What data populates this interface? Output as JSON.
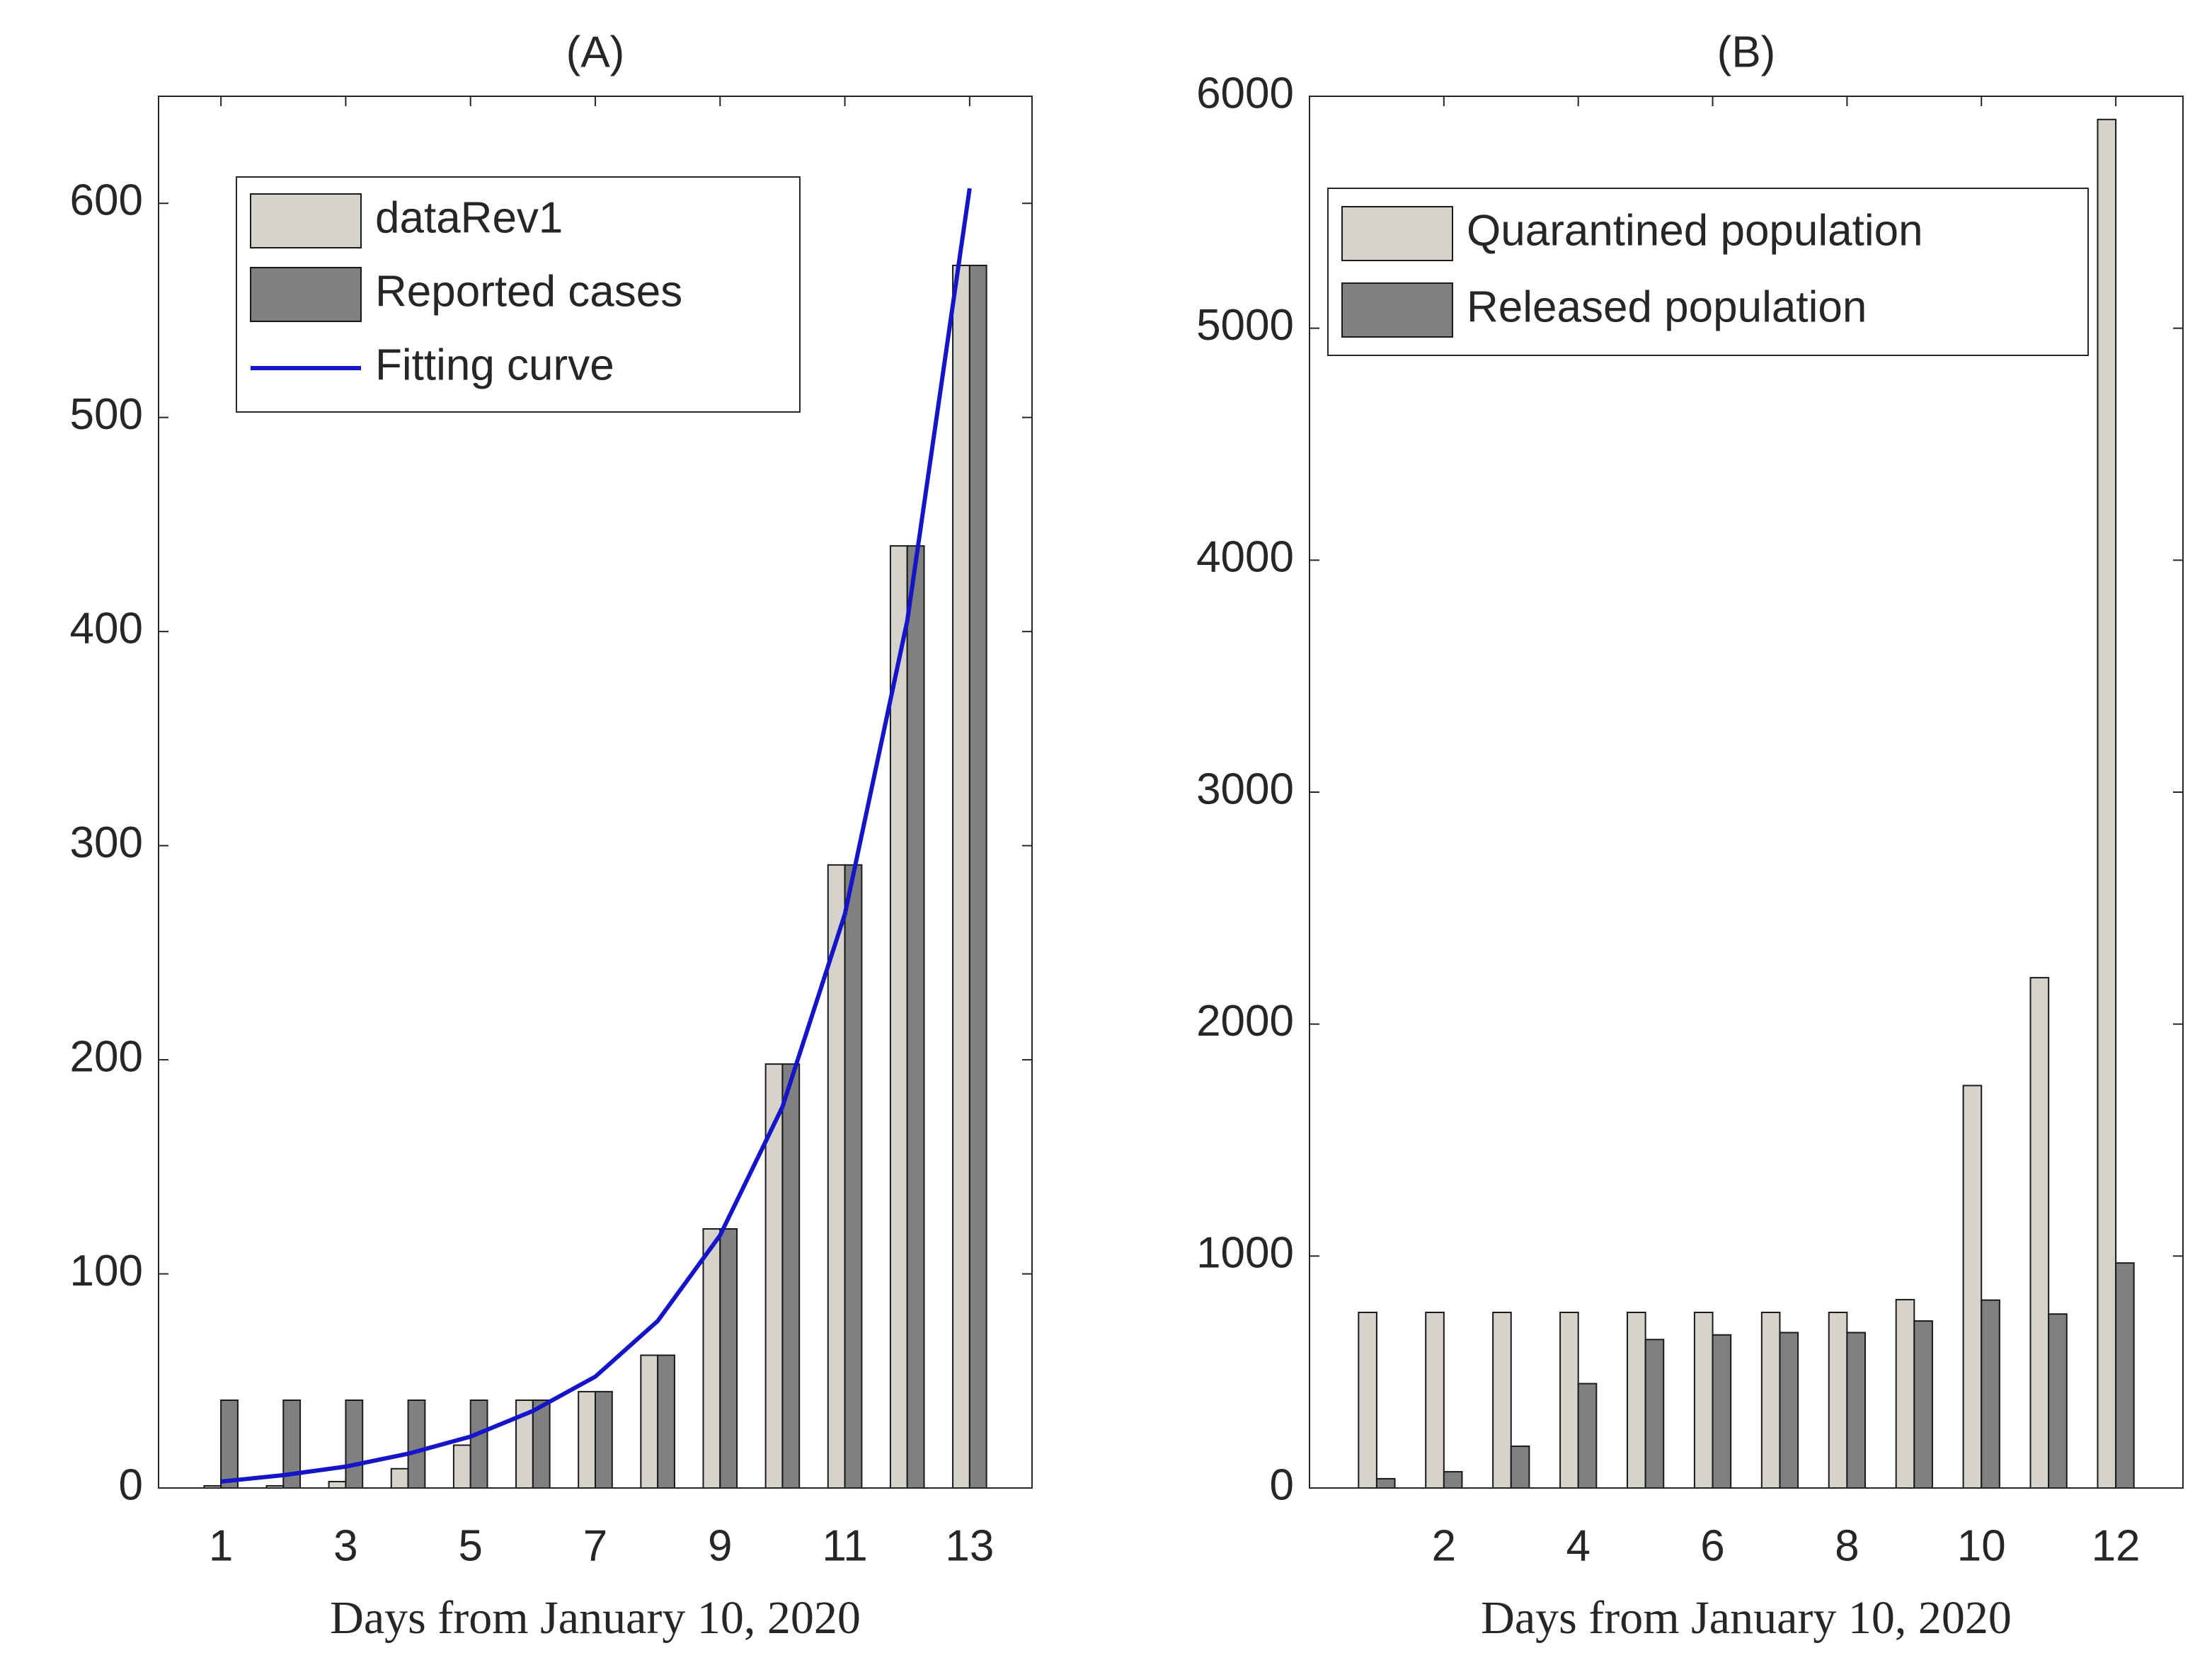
{
  "chart_data": [
    {
      "type": "bar",
      "title": "(A)",
      "xlabel": "Days from January 10, 2020",
      "x": [
        1,
        2,
        3,
        4,
        5,
        6,
        7,
        8,
        9,
        10,
        11,
        12,
        13
      ],
      "xlim": [
        0,
        14
      ],
      "xticks": [
        1,
        3,
        5,
        7,
        9,
        11,
        13
      ],
      "ylim": [
        0,
        650
      ],
      "yticks": [
        0,
        100,
        200,
        300,
        400,
        500,
        600
      ],
      "grid": false,
      "legend": "upper left",
      "series": [
        {
          "name": "dataRev1",
          "type": "bar",
          "color": "#d6d3cc",
          "values": [
            1,
            1,
            3,
            9,
            20,
            41,
            45,
            62,
            121,
            198,
            291,
            440,
            571
          ]
        },
        {
          "name": "Reported cases",
          "type": "bar",
          "color": "#808080",
          "values": [
            41,
            41,
            41,
            41,
            41,
            41,
            45,
            62,
            121,
            198,
            291,
            440,
            571
          ]
        },
        {
          "name": "Fitting curve",
          "type": "line",
          "color": "#1414c8",
          "values": [
            3,
            6,
            10,
            16,
            24,
            36,
            52,
            78,
            118,
            178,
            268,
            405,
            607
          ]
        }
      ]
    },
    {
      "type": "bar",
      "title": "(B)",
      "xlabel": "Days from January 10, 2020",
      "x": [
        1,
        2,
        3,
        4,
        5,
        6,
        7,
        8,
        9,
        10,
        11,
        12
      ],
      "xlim": [
        0,
        13
      ],
      "xticks": [
        2,
        4,
        6,
        8,
        10,
        12
      ],
      "ylim": [
        0,
        6000
      ],
      "yticks": [
        0,
        1000,
        2000,
        3000,
        4000,
        5000,
        6000
      ],
      "grid": false,
      "legend": "upper left",
      "series": [
        {
          "name": "Quarantined population",
          "type": "bar",
          "color": "#d6d3cc",
          "values": [
            757,
            757,
            757,
            757,
            757,
            757,
            757,
            757,
            812,
            1735,
            2200,
            5900
          ]
        },
        {
          "name": "Released population",
          "type": "bar",
          "color": "#808080",
          "values": [
            40,
            70,
            180,
            450,
            640,
            660,
            670,
            670,
            720,
            810,
            750,
            970
          ]
        }
      ]
    }
  ]
}
